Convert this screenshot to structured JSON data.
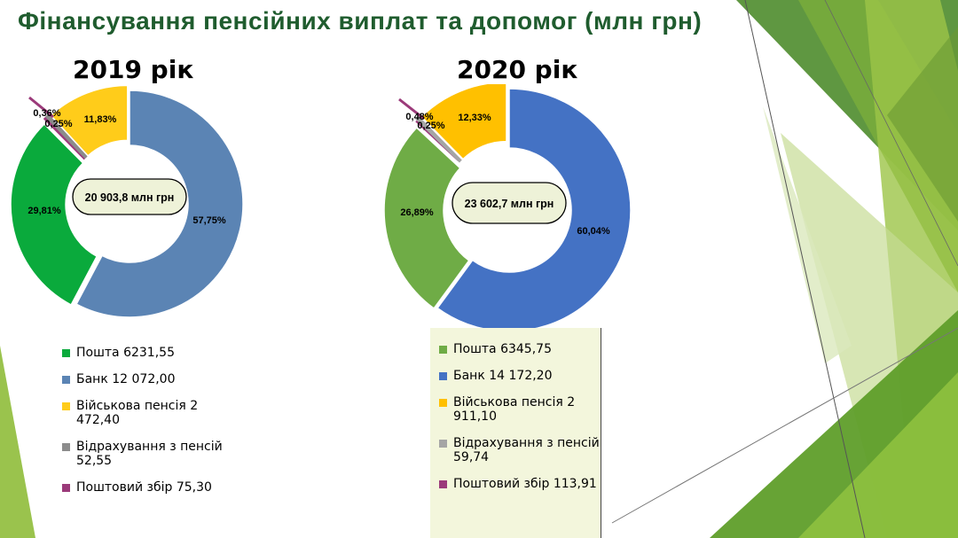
{
  "title": "Фінансування пенсійних виплат та допомог (млн грн)",
  "colors": {
    "post": "#0aaa3c",
    "bank": "#5b84b4",
    "military": "#ffcc1a",
    "deduction": "#8c8c8c",
    "fee": "#9b3a7a",
    "post_2020": "#6fac46",
    "bank_2020": "#4472c4",
    "military_2020": "#ffc000",
    "deduction_2020": "#a5a5a5",
    "fee_2020": "#9b3a7a",
    "title": "#1f5c2e",
    "center_fill": "#eef2d8"
  },
  "chart_data": [
    {
      "type": "pie",
      "year_label": "2019 рік",
      "center_label": "20 903,8 млн грн",
      "categories": [
        "Пошта",
        "Банк",
        "Військова пенсія",
        "Відрахування з пенсій",
        "Поштовий збір"
      ],
      "values": [
        6231.55,
        12072.0,
        2472.4,
        52.55,
        75.3
      ],
      "percent_labels": [
        "29,81%",
        "57,75%",
        "11,83%",
        "0,25%",
        "0,36%"
      ],
      "legend": [
        "Пошта 6231,55",
        "Банк 12 072,00",
        "Військова пенсія 2 472,40",
        "Відрахування з пенсій 52,55",
        "Поштовий збір 75,30"
      ]
    },
    {
      "type": "pie",
      "year_label": "2020 рік",
      "center_label": "23 602,7 млн грн",
      "categories": [
        "Пошта",
        "Банк",
        "Військова пенсія",
        "Відрахування з пенсій",
        "Поштовий збір"
      ],
      "values": [
        6345.75,
        14172.2,
        2911.1,
        59.74,
        113.91
      ],
      "percent_labels": [
        "26,89%",
        "60,04%",
        "12,33%",
        "0,25%",
        "0,48%"
      ],
      "legend": [
        "Пошта 6345,75",
        "Банк 14 172,20",
        "Військова пенсія 2 911,10",
        "Відрахування з пенсій 59,74",
        "Поштовий збір 113,91"
      ]
    }
  ]
}
